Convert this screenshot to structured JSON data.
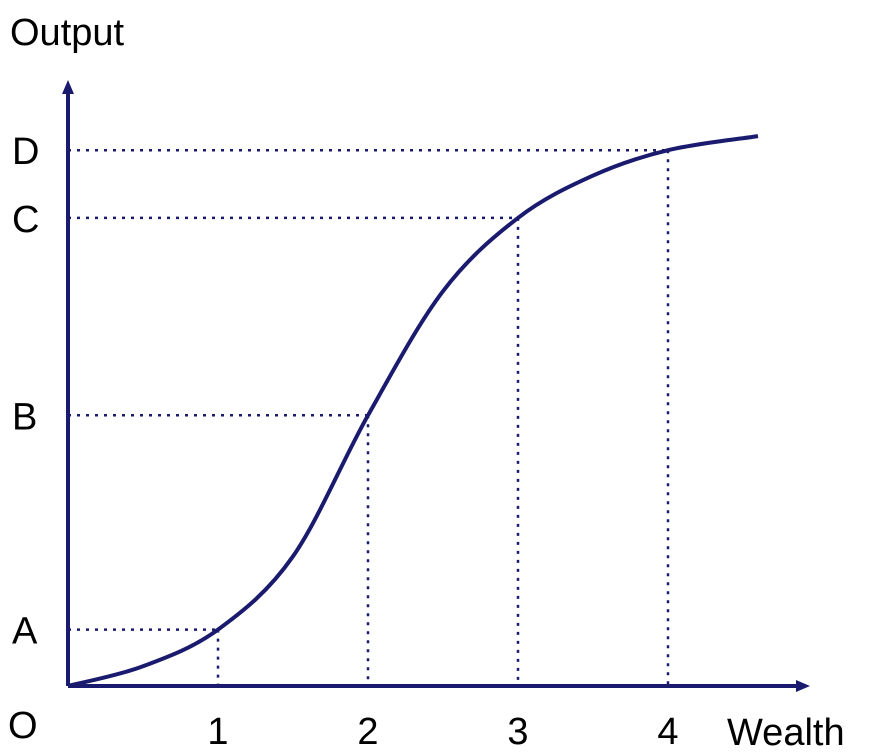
{
  "chart_data": {
    "type": "line",
    "title": "",
    "xlabel": "Wealth",
    "ylabel": "Output",
    "origin_label": "O",
    "x_ticks": [
      {
        "value": 1,
        "label": "1"
      },
      {
        "value": 2,
        "label": "2"
      },
      {
        "value": 3,
        "label": "3"
      },
      {
        "value": 4,
        "label": "4"
      }
    ],
    "y_ticks": [
      {
        "key": "A",
        "label": "A",
        "value": 0.1
      },
      {
        "key": "B",
        "label": "B",
        "value": 0.48
      },
      {
        "key": "C",
        "label": "C",
        "value": 0.83
      },
      {
        "key": "D",
        "label": "D",
        "value": 0.95
      }
    ],
    "series": [
      {
        "points": [
          [
            0,
            0
          ],
          [
            0.5,
            0.035
          ],
          [
            1,
            0.1
          ],
          [
            1.5,
            0.23
          ],
          [
            2,
            0.48
          ],
          [
            2.5,
            0.7
          ],
          [
            3,
            0.83
          ],
          [
            3.5,
            0.905
          ],
          [
            4,
            0.95
          ],
          [
            4.6,
            0.975
          ]
        ]
      }
    ],
    "guides": [
      {
        "x": 1,
        "y": 0.1
      },
      {
        "x": 2,
        "y": 0.48
      },
      {
        "x": 3,
        "y": 0.83
      },
      {
        "x": 4,
        "y": 0.95
      }
    ],
    "xlim": [
      0,
      4.6
    ],
    "ylim": [
      0,
      1
    ],
    "grid": false,
    "colors": {
      "curve": "#1a1a6e",
      "axis": "#1a1a6e",
      "guide": "#1a1a6e"
    }
  }
}
